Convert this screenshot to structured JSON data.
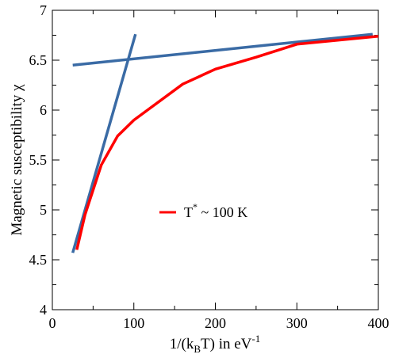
{
  "chart_data": {
    "type": "line",
    "xlabel": {
      "prefix": "1/(k",
      "sub": "B",
      "middle": "T) in eV",
      "sup": "-1"
    },
    "ylabel": "Magnetic susceptibility χ",
    "xlim": [
      0,
      400
    ],
    "ylim": [
      4,
      7
    ],
    "xticks": [
      0,
      100,
      200,
      300,
      400
    ],
    "yticks": [
      4,
      4.5,
      5,
      5.5,
      6,
      6.5,
      7
    ],
    "xtick_labels": [
      "0",
      "100",
      "200",
      "300",
      "400"
    ],
    "ytick_labels": [
      "4",
      "4.5",
      "5",
      "5.5",
      "6",
      "6.5",
      "7"
    ],
    "grid": false,
    "legend_position": "center",
    "series": [
      {
        "name": "T* ~ 100 K",
        "color": "#ff0000",
        "x": [
          30,
          40,
          50,
          60,
          80,
          100,
          120,
          160,
          200,
          250,
          300,
          400
        ],
        "y": [
          4.6,
          4.95,
          5.2,
          5.45,
          5.74,
          5.9,
          6.02,
          6.26,
          6.41,
          6.53,
          6.66,
          6.74
        ]
      },
      {
        "color": "#3a6ba5",
        "x": [
          25,
          102
        ],
        "y": [
          4.57,
          6.76
        ]
      },
      {
        "color": "#3a6ba5",
        "x": [
          25,
          393
        ],
        "y": [
          6.45,
          6.76
        ]
      }
    ],
    "legend": {
      "label_main": "T",
      "label_sup": "*",
      "label_rest": " ~ 100 K"
    }
  }
}
